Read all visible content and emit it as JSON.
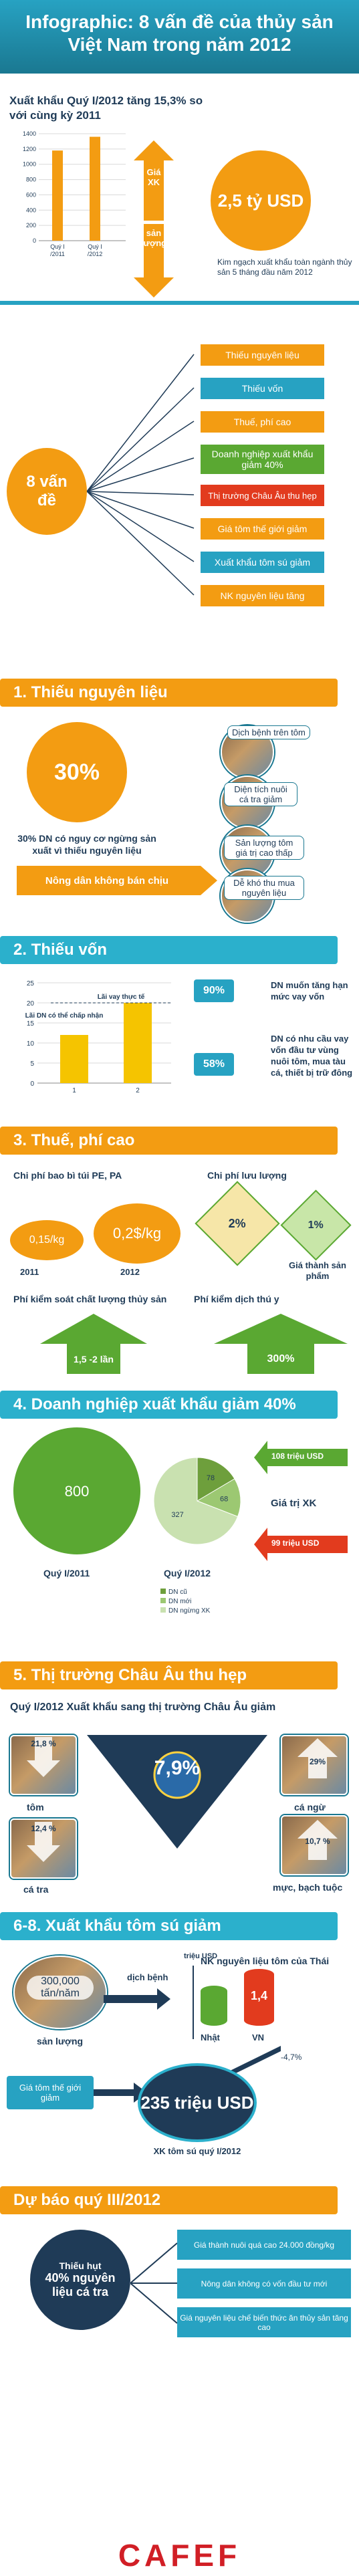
{
  "header": {
    "title_line1": "Infographic: 8 vấn đề của thủy sản",
    "title_line2": "Việt Nam trong năm 2012"
  },
  "colors": {
    "teal": "#27a2c2",
    "orange": "#f39c12",
    "green": "#5aa832",
    "red": "#e23b1e",
    "navy": "#1f3b57"
  },
  "intro": {
    "headline": "Xuất khẩu  Quý I/2012 tăng 15,3% so với cùng kỳ 2011",
    "price_arrow_label": "Giá XK",
    "volume_arrow_label": "sản lượng",
    "value_circle": "2,5 tỷ USD",
    "value_caption": "Kim ngạch xuất khẩu toàn ngành thủy sản 5 tháng đầu năm 2012"
  },
  "problems": {
    "center_label": "8 vấn đề",
    "items": [
      "Thiếu nguyên liệu",
      "Thiếu vốn",
      "Thuế, phí  cao",
      "Doanh nghiệp  xuất khẩu giảm 40%",
      "Thị trường Châu Âu thu hẹp",
      "Giá tôm thế giới giảm",
      "Xuất khẩu tôm sú giảm",
      "NK nguyên liệu tăng"
    ]
  },
  "s1": {
    "title": "1. Thiếu nguyên liệu",
    "percent": "30%",
    "percent_caption": "30% DN có nguy cơ ngừng sản xuất vì thiếu nguyên liệu",
    "farmer_label": "Nông dân không bán chịu",
    "reasons": [
      "Dịch bệnh trên tôm",
      "Diện tích nuôi cá tra giảm",
      "Sản lượng tôm giá trị cao thấp",
      "Dễ khó thu mua nguyên liệu"
    ]
  },
  "s2": {
    "title": "2. Thiếu vốn",
    "pct1": "90%",
    "pct1_caption": "DN muốn tăng hạn mức vay vốn",
    "pct2": "58%",
    "pct2_caption": "DN có nhu cầu vay vốn đầu tư vùng nuôi tôm, mua tàu cá, thiết bị trữ đông"
  },
  "s3": {
    "title": "3. Thuế, phí  cao",
    "bag_fee_label": "Chi phí bao bì túi PE, PA",
    "fee_2011": "0,15/kg",
    "fee_2012": "0,2$/kg",
    "year_2011": "2011",
    "year_2012": "2012",
    "inspection_label": "Phí kiểm soát chất lượng thủy sản",
    "inspection_value": "1,5 -2 lần",
    "flow_label": "Chi phí lưu lượng",
    "flow_before": "2%",
    "flow_after": "1%",
    "price_caption": "Giá thành sản phẩm",
    "agent_label": "Phí kiểm dịch thú y",
    "agent_value": "300%"
  },
  "s4": {
    "title": "4. Doanh nghiệp  xuất khẩu giảm 40%",
    "q1_2011_label": "Quý I/2011",
    "q1_2012_label": "Quý I/2012",
    "export_price_label": "Giá trị XK",
    "up_value": "108 triệu USD",
    "down_value": "99 triệu USD",
    "legend": [
      "DN cũ",
      "DN mới",
      "DN ngừng XK"
    ]
  },
  "s5": {
    "title": "5. Thị trường Châu Âu thu hẹp",
    "subtitle": "Quý I/2012 Xuất khẩu sang thị trường Châu Âu giảm",
    "center_value": "7,9%",
    "items": [
      {
        "label": "tôm",
        "value": "21,8 %"
      },
      {
        "label": "cá ngừ",
        "value": "29%"
      },
      {
        "label": "cá tra",
        "value": "12,4 %"
      },
      {
        "label": "mực, bạch tuộc",
        "value": "10,7 %"
      }
    ]
  },
  "s6": {
    "title": "6-8. Xuất khẩu tôm sú giảm",
    "thai_volume": "300,000 tấn/năm",
    "volume_label": "sản lượng",
    "disease_label": "dịch bệnh",
    "thai_header": "NK nguyên liệu tôm của Thái",
    "unit_label": "triệu USD",
    "japan_label": "Nhật",
    "japan_value": "",
    "vn_label": "VN",
    "vn_value": "1,4",
    "change_value": "-4,7%",
    "price_label": "Giá tôm thế giới giảm",
    "circle_value": "235 triệu USD",
    "circle_caption": "XK tôm sú quý I/2012"
  },
  "forecast": {
    "title": "Dự báo quý III/2012",
    "shortage": "Thiếu hụt",
    "percent": "40% nguyên liệu cá tra",
    "bullets": [
      "Giá thành nuôi quá cao 24.000 đồng/kg",
      "Nông dân không có vốn đầu tư mới",
      "Giá  nguyên liệu chế biến thức ăn thủy sản tăng cao"
    ]
  },
  "footer": {
    "logo": "CAFEF"
  },
  "chart_data": [
    {
      "type": "bar",
      "categories": [
        "Quý I/2011",
        "Quý I/2012"
      ],
      "values": [
        1180,
        1360
      ],
      "title": "",
      "xlabel": "",
      "ylabel": "",
      "ylim": [
        0,
        1400
      ],
      "yticks": [
        0,
        200,
        400,
        600,
        800,
        1000,
        1200,
        1400
      ],
      "grid": true
    },
    {
      "type": "bar",
      "categories": [
        "1",
        "2"
      ],
      "series": [
        {
          "name": "",
          "values": [
            12,
            20
          ]
        }
      ],
      "title": "",
      "xlabel": "",
      "ylabel": "",
      "ylim": [
        0,
        25
      ],
      "yticks": [
        0,
        5,
        10,
        15,
        20,
        25
      ],
      "annotations": [
        "Lãi vay thực tế",
        "Lãi DN có thể chấp nhận"
      ],
      "grid": true
    },
    {
      "type": "pie",
      "title": "",
      "slices": [
        {
          "label": "Quý I/2011",
          "value": 800
        },
        {
          "label": "DN cũ",
          "value": 78
        },
        {
          "label": "DN mới",
          "value": 68
        },
        {
          "label": "DN ngừng XK",
          "value": 327
        }
      ]
    }
  ]
}
